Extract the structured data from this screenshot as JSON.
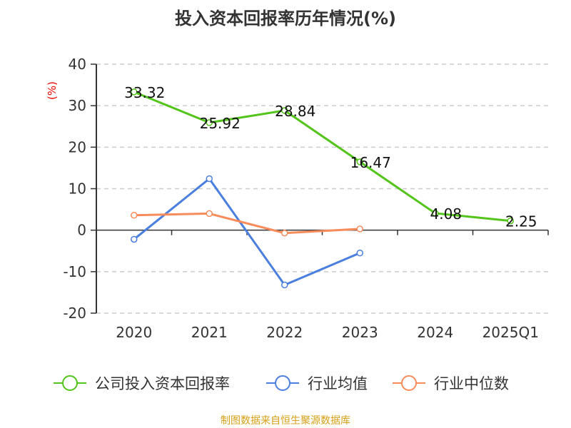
{
  "chart_data": {
    "type": "line",
    "title": "投入资本回报率历年情况(%)",
    "ylabel": "(%)",
    "xlabel": "",
    "ylim": [
      -20,
      40
    ],
    "yticks": [
      40,
      30,
      20,
      10,
      0,
      -10,
      -20
    ],
    "categories": [
      "2020",
      "2021",
      "2022",
      "2023",
      "2024",
      "2025Q1"
    ],
    "grid": true,
    "legend_position": "bottom",
    "series": [
      {
        "name": "公司投入资本回报率",
        "color": "#52c41a",
        "values": [
          33.32,
          25.92,
          28.84,
          16.47,
          4.08,
          2.25
        ],
        "labels": [
          "33.32",
          "25.92",
          "28.84",
          "16.47",
          "4.08",
          "2.25"
        ]
      },
      {
        "name": "行业均值",
        "color": "#4a7fe0",
        "values": [
          -2.2,
          12.4,
          -13.2,
          -5.5,
          null,
          null
        ]
      },
      {
        "name": "行业中位数",
        "color": "#f88b5a",
        "values": [
          3.6,
          4.0,
          -0.7,
          0.3,
          null,
          null
        ]
      }
    ]
  },
  "source": "制图数据来自恒生聚源数据库"
}
